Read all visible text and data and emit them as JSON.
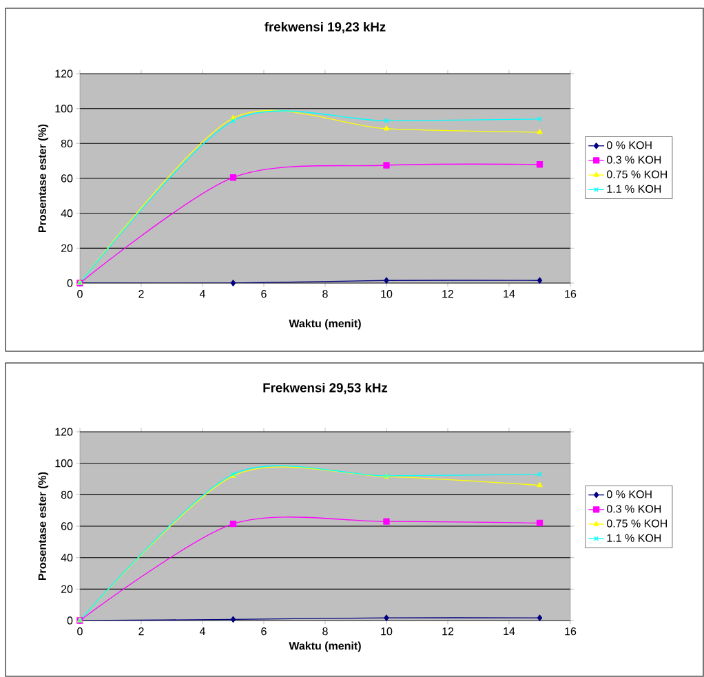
{
  "chart_data": [
    {
      "type": "line",
      "title": "frekwensi 19,23 kHz",
      "xlabel": "Waktu (menit)",
      "ylabel": "Prosentase ester (%)",
      "x": [
        0,
        5,
        10,
        15
      ],
      "series": [
        {
          "name": "0 % KOH",
          "color": "#000080",
          "marker": "diamond",
          "values": [
            0,
            0,
            1.5,
            1.5
          ]
        },
        {
          "name": "0.3 % KOH",
          "color": "#ff00ff",
          "marker": "square",
          "values": [
            0,
            60.5,
            67.5,
            68
          ]
        },
        {
          "name": "0.75 % KOH",
          "color": "#ffff00",
          "marker": "triangle",
          "values": [
            0,
            94.5,
            88.5,
            86.5
          ]
        },
        {
          "name": "1.1 % KOH",
          "color": "#00ffff",
          "marker": "cross",
          "values": [
            0,
            93,
            93,
            94
          ]
        }
      ],
      "xlim": [
        0,
        16
      ],
      "ylim": [
        0,
        120
      ],
      "xticks": [
        0,
        2,
        4,
        6,
        8,
        10,
        12,
        14,
        16
      ],
      "yticks": [
        0,
        20,
        40,
        60,
        80,
        100,
        120
      ],
      "grid": "y",
      "legend": "right"
    },
    {
      "type": "line",
      "title": "Frekwensi 29,53 kHz",
      "xlabel": "Waktu (menit)",
      "ylabel": "Prosentase ester (%)",
      "x": [
        0,
        5,
        10,
        15
      ],
      "series": [
        {
          "name": "0 % KOH",
          "color": "#000080",
          "marker": "diamond",
          "values": [
            0,
            0.7,
            1.7,
            1.7
          ]
        },
        {
          "name": "0.3 % KOH",
          "color": "#ff00ff",
          "marker": "square",
          "values": [
            0,
            61.5,
            63,
            62
          ]
        },
        {
          "name": "0.75 % KOH",
          "color": "#ffff00",
          "marker": "triangle",
          "values": [
            0,
            92,
            91.5,
            86
          ]
        },
        {
          "name": "1.1 % KOH",
          "color": "#00ffff",
          "marker": "cross",
          "values": [
            0,
            93,
            92,
            93
          ]
        }
      ],
      "xlim": [
        0,
        16
      ],
      "ylim": [
        0,
        120
      ],
      "xticks": [
        0,
        2,
        4,
        6,
        8,
        10,
        12,
        14,
        16
      ],
      "yticks": [
        0,
        20,
        40,
        60,
        80,
        100,
        120
      ],
      "grid": "y",
      "legend": "right"
    }
  ]
}
